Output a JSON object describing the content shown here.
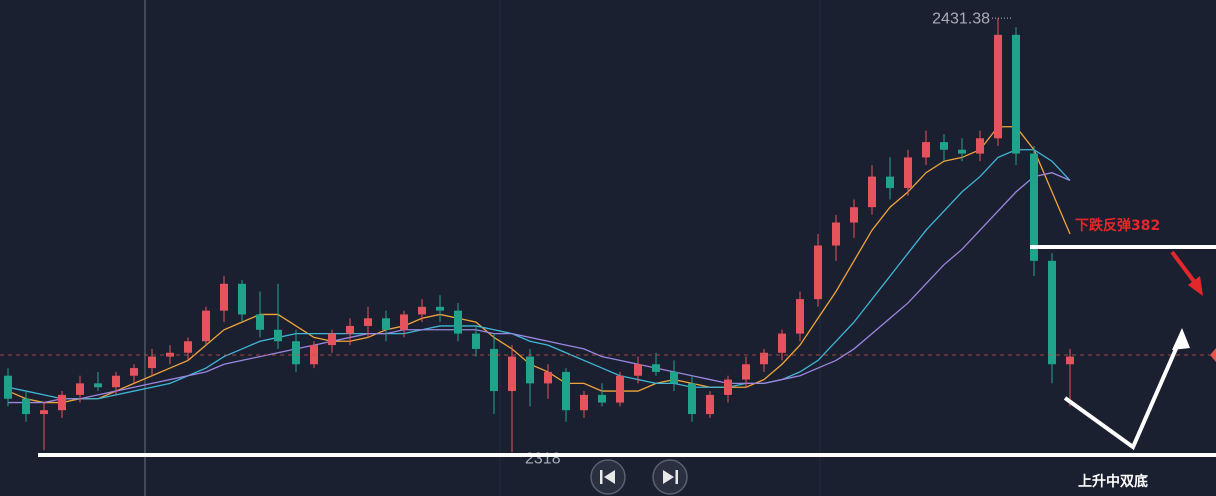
{
  "chart_data": {
    "type": "candlestick",
    "ylim": [
      2306.6,
      2436.1
    ],
    "up_color": "#e5535c",
    "down_color": "#1fa38b",
    "open": [
      2338,
      2332,
      2328,
      2329,
      2333,
      2336,
      2335,
      2338,
      2340,
      2343,
      2344,
      2347,
      2355,
      2362,
      2354,
      2350,
      2347,
      2341,
      2346,
      2349,
      2351,
      2353,
      2350,
      2354,
      2356,
      2355,
      2349,
      2345,
      2334,
      2343,
      2336,
      2339,
      2329,
      2333,
      2331,
      2338,
      2341,
      2339,
      2336,
      2328,
      2333,
      2337,
      2341,
      2344,
      2349,
      2358,
      2372,
      2378,
      2382,
      2390,
      2387,
      2395,
      2399,
      2397,
      2396,
      2400,
      2427,
      2396,
      2368,
      2341
    ],
    "high": [
      2340,
      2334,
      2331,
      2334,
      2338,
      2339,
      2339,
      2341,
      2345,
      2346,
      2348,
      2356,
      2364,
      2363,
      2360,
      2362,
      2350,
      2347,
      2350,
      2353,
      2356,
      2355,
      2355,
      2358,
      2359,
      2357,
      2351,
      2349,
      2346,
      2345,
      2341,
      2340,
      2334,
      2336,
      2339,
      2343,
      2344,
      2342,
      2338,
      2334,
      2338,
      2343,
      2345,
      2350,
      2360,
      2375,
      2380,
      2384,
      2393,
      2395,
      2397,
      2402,
      2401,
      2400,
      2402,
      2431.38,
      2429,
      2398,
      2370,
      2345
    ],
    "low": [
      2330,
      2326,
      2318.59,
      2327,
      2331,
      2334,
      2333,
      2336,
      2338,
      2341,
      2342,
      2346,
      2352,
      2352,
      2348,
      2345,
      2339,
      2340,
      2344,
      2346,
      2348,
      2347,
      2348,
      2352,
      2352,
      2347,
      2343,
      2328,
      2318,
      2330,
      2332,
      2326,
      2327,
      2330,
      2330,
      2336,
      2338,
      2334,
      2326,
      2327,
      2331,
      2335,
      2339,
      2342,
      2347,
      2356,
      2368,
      2374,
      2380,
      2384,
      2385,
      2393,
      2394,
      2394,
      2394,
      2398,
      2393,
      2364,
      2336,
      2330
    ],
    "close": [
      2332,
      2328,
      2329,
      2333,
      2336,
      2335,
      2338,
      2340,
      2343,
      2344,
      2347,
      2355,
      2362,
      2354,
      2350,
      2347,
      2341,
      2346,
      2349,
      2351,
      2353,
      2350,
      2354,
      2356,
      2355,
      2349,
      2345,
      2334,
      2343,
      2336,
      2339,
      2329,
      2333,
      2331,
      2338,
      2341,
      2339,
      2336,
      2328,
      2333,
      2337,
      2341,
      2344,
      2349,
      2358,
      2372,
      2378,
      2382,
      2390,
      2387,
      2395,
      2399,
      2397,
      2396,
      2400,
      2427,
      2396,
      2368,
      2341,
      2343
    ],
    "series": [
      {
        "color": "#f0a43a",
        "values": [
          2334,
          2332,
          2331,
          2331,
          2332,
          2332,
          2334,
          2336,
          2338,
          2340,
          2342,
          2346,
          2350,
          2352,
          2354,
          2354,
          2351,
          2348,
          2347,
          2347,
          2348,
          2350,
          2351,
          2353,
          2354,
          2353,
          2352,
          2348,
          2345,
          2341,
          2339,
          2336,
          2336,
          2334,
          2334,
          2334,
          2336,
          2337,
          2336,
          2335,
          2335,
          2335,
          2337,
          2341,
          2346,
          2353,
          2360,
          2368,
          2376,
          2382,
          2386,
          2391,
          2394,
          2395,
          2397,
          2403,
          2403,
          2397,
          2386,
          2375
        ]
      },
      {
        "color": "#3fb6d6",
        "values": [
          2335,
          2334,
          2333,
          2332,
          2332,
          2332,
          2333,
          2334,
          2335,
          2336,
          2338,
          2340,
          2343,
          2345,
          2347,
          2348,
          2349,
          2349,
          2349,
          2349,
          2349,
          2349,
          2349,
          2350,
          2351,
          2351,
          2351,
          2350,
          2349,
          2347,
          2346,
          2344,
          2342,
          2340,
          2338,
          2337,
          2336,
          2336,
          2335,
          2335,
          2335,
          2336,
          2336,
          2337,
          2339,
          2342,
          2347,
          2352,
          2358,
          2364,
          2370,
          2376,
          2381,
          2386,
          2390,
          2395,
          2397,
          2397,
          2394,
          2389
        ]
      },
      {
        "color": "#9b86e0",
        "values": [
          2331,
          2331,
          2331,
          2332,
          2332,
          2333,
          2334,
          2335,
          2336,
          2337,
          2338,
          2339,
          2341,
          2342,
          2343,
          2344,
          2345,
          2346,
          2347,
          2348,
          2349,
          2349,
          2350,
          2350,
          2350,
          2350,
          2350,
          2349,
          2349,
          2348,
          2347,
          2346,
          2345,
          2343,
          2342,
          2341,
          2340,
          2339,
          2338,
          2337,
          2336,
          2336,
          2336,
          2337,
          2338,
          2340,
          2342,
          2345,
          2349,
          2353,
          2357,
          2362,
          2367,
          2371,
          2376,
          2381,
          2386,
          2390,
          2391,
          2389
        ]
      }
    ],
    "last_price": 2343.4,
    "levels": [
      {
        "value": 2371.6,
        "label": "下跌反弹382"
      },
      {
        "value": 2317.3,
        "label": "上升中双底"
      }
    ]
  }
}
